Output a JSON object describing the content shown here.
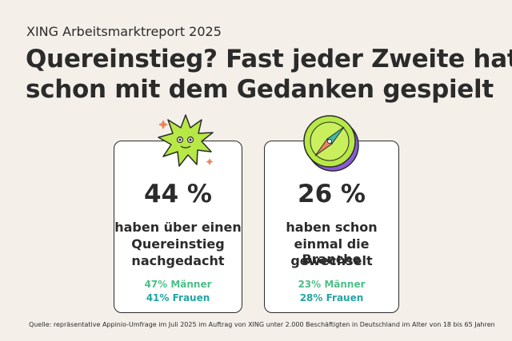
{
  "header": {
    "subtitle": "XING Arbeitsmarktreport 2025",
    "title": [
      "Quereinstieg? Fast jeder Zweite hat",
      "schon mit dem Gedanken gespielt"
    ]
  },
  "cards": [
    {
      "stat": "44 %",
      "text": [
        "haben über einen",
        "Quereinstieg",
        "nachgedacht"
      ],
      "breakdown": [
        "47% Männer",
        "41% Frauen"
      ]
    },
    {
      "stat": "26 %",
      "text": [
        "haben schon",
        "einmal die Branche",
        "gewechselt"
      ],
      "breakdown": [
        "23% Männer",
        "28% Frauen"
      ]
    }
  ],
  "footer": {
    "source": "Quelle: repräsentative Appinio-Umfrage im Juli 2025 im Auftrag von XING unter 2.000 Beschäftigten in Deutschland im Alter von 18 bis 65 Jahren"
  }
}
